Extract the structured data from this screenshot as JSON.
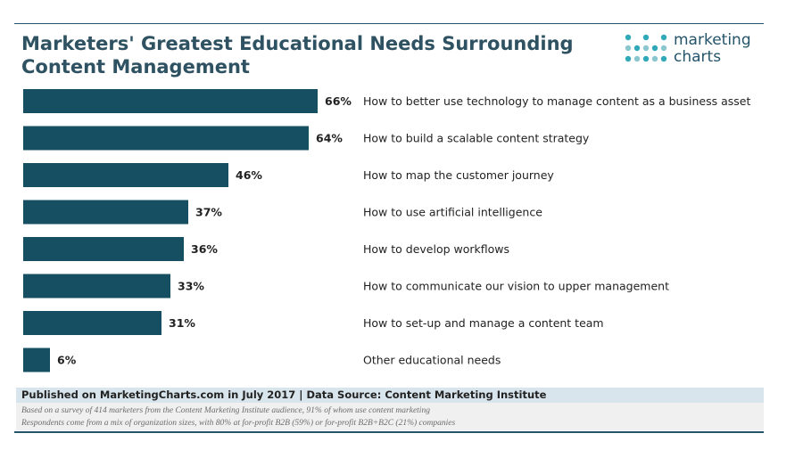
{
  "chart_data": {
    "type": "bar",
    "orientation": "horizontal",
    "title": "Marketers' Greatest Educational Needs Surrounding Content Management",
    "categories": [
      "How to better use technology to manage content as a business asset",
      "How to build a scalable content strategy",
      "How to map the customer journey",
      "How to use artificial intelligence",
      "How to develop workflows",
      "How to communicate our vision to upper management",
      "How to set-up and manage a content team",
      "Other educational needs"
    ],
    "values": [
      66,
      64,
      46,
      37,
      36,
      33,
      31,
      6
    ],
    "value_labels": [
      "66%",
      "64%",
      "46%",
      "37%",
      "36%",
      "33%",
      "31%",
      "6%"
    ],
    "xlim": [
      0,
      100
    ],
    "unit": "%",
    "grid": false,
    "legend": "none",
    "colors": {
      "bar": "#174f62",
      "title": "#2f5262",
      "footer_band": "#d9e5ec"
    }
  },
  "logo": {
    "line1": "marketing",
    "line2": "charts",
    "colors": [
      "#2fa8b8",
      "#8bc6cf",
      "#24546a"
    ]
  },
  "footer": {
    "source": "Published on MarketingCharts.com in July 2017 | Data Source: Content Marketing Institute",
    "note1": "Based on a survey of 414 marketers from the Content Marketing Institute audience, 91% of whom use content marketing",
    "note2": "Respondents come from a mix of organization sizes, with 80% at for-profit B2B (59%) or for-profit B2B+B2C (21%) companies"
  }
}
